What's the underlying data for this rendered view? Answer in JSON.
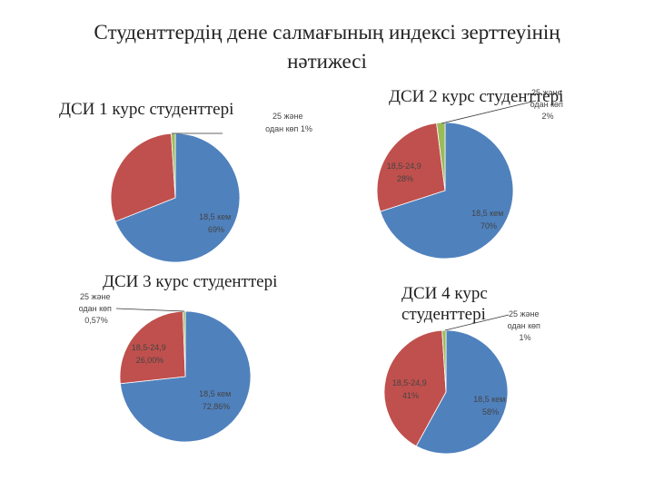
{
  "page": {
    "title_line1": "Студенттердің дене салмағының индексі зерттеуінің",
    "title_line2": "нәтижесі"
  },
  "colors": {
    "low": "#4f81bd",
    "normal": "#c0504d",
    "high": "#9bbb59",
    "leader": "#333333"
  },
  "chart_data": [
    {
      "type": "pie",
      "title": "ДСИ 1 курс студенттері",
      "slices": [
        {
          "label_line1": "18,5 кем",
          "label_line2": "69%",
          "value": 69,
          "color": "#4f81bd"
        },
        {
          "label_line1": "",
          "label_line2": "",
          "value": 30,
          "color": "#c0504d"
        },
        {
          "label_line1": "25 және",
          "label_line2": "одан көп 1%",
          "value": 1,
          "color": "#9bbb59"
        }
      ]
    },
    {
      "type": "pie",
      "title": "ДСИ 2 курс студенттері",
      "slices": [
        {
          "label_line1": "18,5 кем",
          "label_line2": "70%",
          "value": 70,
          "color": "#4f81bd"
        },
        {
          "label_line1": "18,5-24,9",
          "label_line2": "28%",
          "value": 28,
          "color": "#c0504d"
        },
        {
          "label_line1": "25 және",
          "label_line2": "одан көп",
          "label_line3": "2%",
          "value": 2,
          "color": "#9bbb59"
        }
      ]
    },
    {
      "type": "pie",
      "title": "ДСИ 3 курс студенттері",
      "slices": [
        {
          "label_line1": "18,5 кем",
          "label_line2": "72,86%",
          "value": 72.86,
          "color": "#4f81bd"
        },
        {
          "label_line1": "18,5-24,9",
          "label_line2": "26,00%",
          "value": 26.0,
          "color": "#c0504d"
        },
        {
          "label_line1": "25 және",
          "label_line2": "одан көп",
          "label_line3": "0,57%",
          "value": 0.57,
          "color": "#9bbb59"
        }
      ]
    },
    {
      "type": "pie",
      "title_line1": "ДСИ 4 курс",
      "title_line2": "студенттері",
      "slices": [
        {
          "label_line1": "18,5 кем",
          "label_line2": "58%",
          "value": 58,
          "color": "#4f81bd"
        },
        {
          "label_line1": "18,5-24,9",
          "label_line2": "41%",
          "value": 41,
          "color": "#c0504d"
        },
        {
          "label_line1": "25 және",
          "label_line2": "одан көп",
          "label_line3": "1%",
          "value": 1,
          "color": "#9bbb59"
        }
      ]
    }
  ]
}
